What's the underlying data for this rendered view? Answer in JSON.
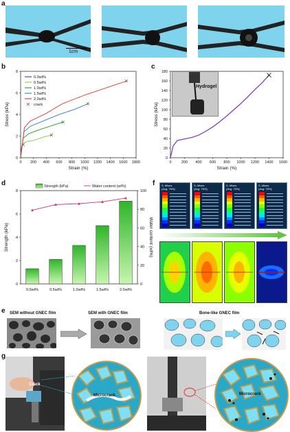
{
  "panels": {
    "a": {
      "label": "a",
      "scale_bar": "1cm"
    },
    "b": {
      "label": "b"
    },
    "c": {
      "label": "c",
      "inset": "Hydrogel"
    },
    "d": {
      "label": "d"
    },
    "e": {
      "label": "e",
      "titles": [
        "SEM without GNEC film",
        "SEM with GNEC film",
        "Bone-like GNEC film"
      ]
    },
    "f": {
      "label": "f",
      "stress_titles": [
        "S, Mises",
        "S, Mises",
        "S, Mises",
        "S, Mises"
      ],
      "stress_sub": "(Avg: 75%)"
    },
    "g": {
      "label": "g",
      "labels": [
        "Crack",
        "Microcrack",
        "Microcrack"
      ]
    }
  },
  "colors": {
    "photo_bg": "#7fd3ec",
    "series_b": [
      "#7b2fbf",
      "#8fd14f",
      "#33a02c",
      "#3e8bd8",
      "#e1473c"
    ],
    "curve_c": "#7b2fbf",
    "bar_green": "#5fd23a",
    "water_line": "#d6336c"
  },
  "chart_data": [
    {
      "id": "b",
      "type": "line",
      "xlabel": "Strain (%)",
      "ylabel": "Stress (kPa)",
      "xlim": [
        0,
        1800
      ],
      "ylim": [
        0,
        8
      ],
      "xticks": [
        "0",
        "200",
        "400",
        "600",
        "800",
        "1000",
        "1200",
        "1400",
        "1600",
        "1800"
      ],
      "yticks": [
        "0",
        "2",
        "4",
        "6",
        "8"
      ],
      "legend_position": "top-left",
      "crack_label": "crack",
      "series": [
        {
          "name": "0.0wt%",
          "points": [
            [
              0,
              0
            ],
            [
              10,
              0.8
            ],
            [
              20,
              1.1
            ],
            [
              40,
              1.2
            ]
          ]
        },
        {
          "name": "0.5wt%",
          "points": [
            [
              0,
              0
            ],
            [
              30,
              1.3
            ],
            [
              100,
              1.5
            ],
            [
              200,
              1.6
            ],
            [
              350,
              1.9
            ],
            [
              480,
              2.1
            ]
          ]
        },
        {
          "name": "1.0wt%",
          "points": [
            [
              0,
              0
            ],
            [
              40,
              1.8
            ],
            [
              120,
              2.2
            ],
            [
              250,
              2.5
            ],
            [
              450,
              2.9
            ],
            [
              660,
              3.3
            ]
          ]
        },
        {
          "name": "1.5wt%",
          "points": [
            [
              0,
              0
            ],
            [
              50,
              2.4
            ],
            [
              150,
              2.9
            ],
            [
              350,
              3.4
            ],
            [
              600,
              4.0
            ],
            [
              850,
              4.5
            ],
            [
              1050,
              5.0
            ]
          ]
        },
        {
          "name": "2.0wt%",
          "points": [
            [
              0,
              0
            ],
            [
              60,
              2.8
            ],
            [
              150,
              3.4
            ],
            [
              400,
              4.1
            ],
            [
              650,
              5.0
            ],
            [
              1000,
              5.8
            ],
            [
              1300,
              6.4
            ],
            [
              1650,
              7.1
            ]
          ]
        }
      ]
    },
    {
      "id": "c",
      "type": "line",
      "xlabel": "Strain (%)",
      "ylabel": "Stress (kPa)",
      "xlim": [
        0,
        1600
      ],
      "ylim": [
        0,
        180
      ],
      "xticks": [
        "0",
        "200",
        "400",
        "600",
        "800",
        "1000",
        "1200",
        "1400",
        "1600"
      ],
      "yticks": [
        "0",
        "20",
        "40",
        "60",
        "80",
        "100",
        "120",
        "140",
        "160",
        "180"
      ],
      "series": [
        {
          "points": [
            [
              0,
              0
            ],
            [
              40,
              25
            ],
            [
              100,
              36
            ],
            [
              200,
              39
            ],
            [
              300,
              42
            ],
            [
              400,
              47
            ],
            [
              500,
              55
            ],
            [
              600,
              64
            ],
            [
              700,
              75
            ],
            [
              800,
              87
            ],
            [
              900,
              100
            ],
            [
              1000,
              113
            ],
            [
              1100,
              127
            ],
            [
              1200,
              142
            ],
            [
              1300,
              156
            ],
            [
              1400,
              172
            ]
          ]
        }
      ]
    },
    {
      "id": "d",
      "type": "bar",
      "categories": [
        "0.0wt%",
        "0.5wt%",
        "1.0wt%",
        "1.5wt%",
        "2.0wt%"
      ],
      "ylabel": "Strength (kPa)",
      "y2label": "Water content (wt%)",
      "ylim": [
        0,
        8
      ],
      "y2lim": [
        0,
        100
      ],
      "yticks": [
        "0",
        "2",
        "4",
        "6",
        "8"
      ],
      "y2ticks": [
        "0",
        "20",
        "40",
        "60",
        "80",
        "100"
      ],
      "legend_position": "top",
      "series": [
        {
          "name": "Strength (kPa)",
          "values": [
            1.3,
            2.1,
            3.3,
            5.0,
            7.1
          ]
        },
        {
          "name": "Water content (wt%)",
          "values": [
            79,
            85,
            86,
            88,
            92
          ]
        }
      ]
    }
  ]
}
